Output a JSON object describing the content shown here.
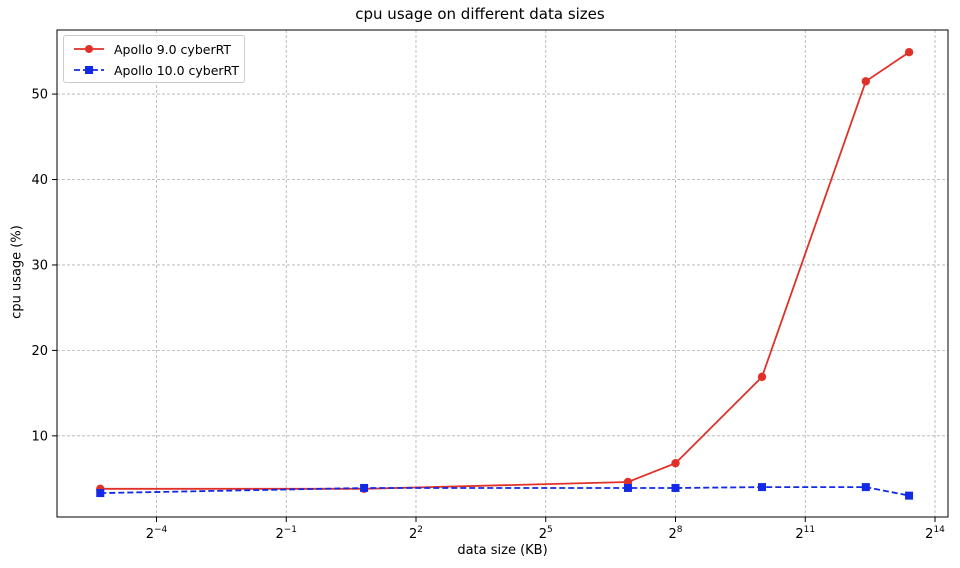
{
  "chart_data": {
    "type": "line",
    "title": "cpu usage on different data sizes",
    "xlabel": "data size (KB)",
    "ylabel": "cpu usage (%)",
    "x_scale": "log2",
    "xlim_log2": [
      -6.3,
      14.3
    ],
    "ylim": [
      0.5,
      57.5
    ],
    "x_ticks": [
      {
        "exp": -4,
        "base": "2",
        "power": "−4"
      },
      {
        "exp": -1,
        "base": "2",
        "power": "−1"
      },
      {
        "exp": 2,
        "base": "2",
        "power": "2"
      },
      {
        "exp": 5,
        "base": "2",
        "power": "5"
      },
      {
        "exp": 8,
        "base": "2",
        "power": "8"
      },
      {
        "exp": 11,
        "base": "2",
        "power": "11"
      },
      {
        "exp": 14,
        "base": "2",
        "power": "14"
      }
    ],
    "y_ticks": [
      10,
      20,
      30,
      40,
      50
    ],
    "grid": true,
    "legend_position": "top-left",
    "series": [
      {
        "name": "Apollo 9.0 cyberRT",
        "color": "#e03128",
        "marker": "circle",
        "dash": "solid",
        "x_log2": [
          -5.3,
          0.8,
          6.9,
          8.0,
          10.0,
          12.4,
          13.4
        ],
        "y": [
          3.8,
          3.8,
          4.6,
          6.8,
          16.9,
          51.5,
          54.9
        ]
      },
      {
        "name": "Apollo 10.0 cyberRT",
        "color": "#1229e6",
        "marker": "square",
        "dash": "dashed",
        "x_log2": [
          -5.3,
          0.8,
          6.9,
          8.0,
          10.0,
          12.4,
          13.4
        ],
        "y": [
          3.3,
          3.9,
          3.9,
          3.9,
          4.0,
          4.0,
          3.0
        ]
      }
    ]
  }
}
